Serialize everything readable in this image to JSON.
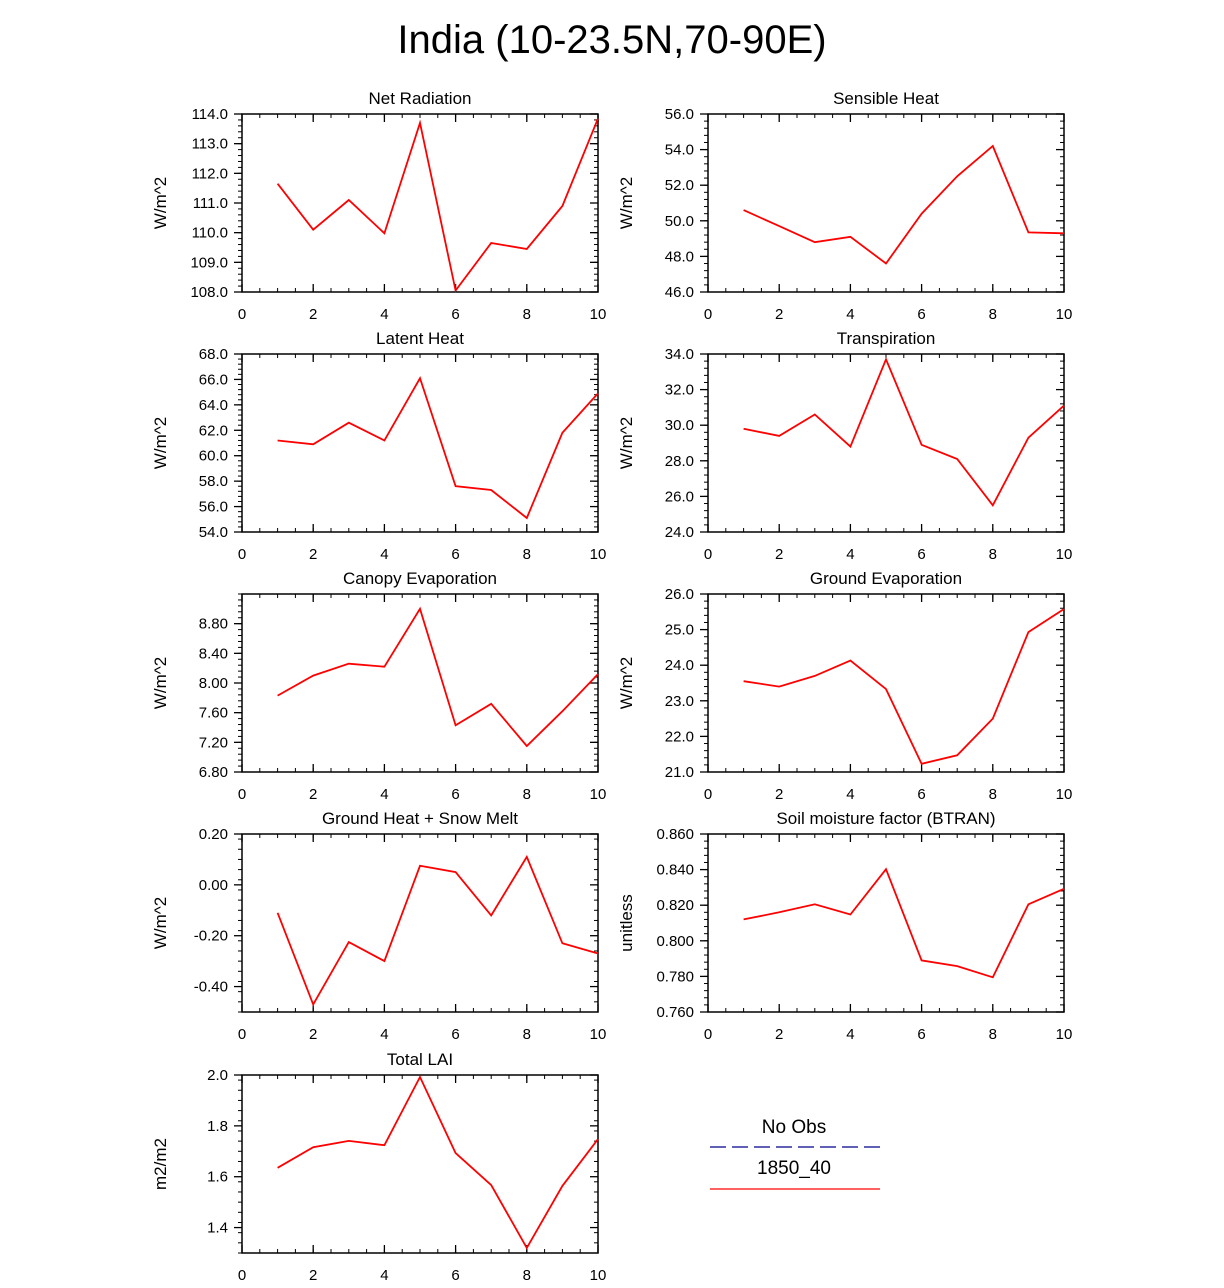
{
  "page_title": "India (10-23.5N,70-90E)",
  "colors": {
    "model_line": "#ff0000",
    "obs_line": "#00008b",
    "axis": "#000000"
  },
  "legend": {
    "obs_label": "No Obs",
    "model_label": "1850_40"
  },
  "chart_data": [
    {
      "type": "line",
      "title": "Net Radiation",
      "ylabel": "W/m^2",
      "xlim": [
        0,
        10
      ],
      "ylim": [
        108.0,
        114.0
      ],
      "x_ticks": [
        0,
        2,
        4,
        6,
        8,
        10
      ],
      "x_tick_labels": [
        "0",
        "2",
        "4",
        "6",
        "8",
        "10"
      ],
      "y_ticks": [
        108.0,
        109.0,
        110.0,
        111.0,
        112.0,
        113.0,
        114.0
      ],
      "y_tick_labels": [
        "108.0",
        "109.0",
        "110.0",
        "111.0",
        "112.0",
        "113.0",
        "114.0"
      ],
      "series": [
        {
          "name": "1850_40",
          "x": [
            1,
            2,
            3,
            4,
            5,
            6,
            7,
            8,
            9,
            10
          ],
          "values": [
            111.65,
            110.1,
            111.1,
            109.98,
            113.7,
            108.05,
            109.65,
            109.45,
            110.9,
            113.85
          ]
        }
      ]
    },
    {
      "type": "line",
      "title": "Sensible Heat",
      "ylabel": "W/m^2",
      "xlim": [
        0,
        10
      ],
      "ylim": [
        46.0,
        56.0
      ],
      "x_ticks": [
        0,
        2,
        4,
        6,
        8,
        10
      ],
      "x_tick_labels": [
        "0",
        "2",
        "4",
        "6",
        "8",
        "10"
      ],
      "y_ticks": [
        46.0,
        48.0,
        50.0,
        52.0,
        54.0,
        56.0
      ],
      "y_tick_labels": [
        "46.0",
        "48.0",
        "50.0",
        "52.0",
        "54.0",
        "56.0"
      ],
      "series": [
        {
          "name": "1850_40",
          "x": [
            1,
            2,
            3,
            4,
            5,
            6,
            7,
            8,
            9,
            10
          ],
          "values": [
            50.6,
            49.7,
            48.8,
            49.1,
            47.6,
            50.4,
            52.5,
            54.2,
            49.35,
            49.3
          ]
        }
      ]
    },
    {
      "type": "line",
      "title": "Latent Heat",
      "ylabel": "W/m^2",
      "xlim": [
        0,
        10
      ],
      "ylim": [
        54.0,
        68.0
      ],
      "x_ticks": [
        0,
        2,
        4,
        6,
        8,
        10
      ],
      "x_tick_labels": [
        "0",
        "2",
        "4",
        "6",
        "8",
        "10"
      ],
      "y_ticks": [
        54.0,
        56.0,
        58.0,
        60.0,
        62.0,
        64.0,
        66.0,
        68.0
      ],
      "y_tick_labels": [
        "54.0",
        "56.0",
        "58.0",
        "60.0",
        "62.0",
        "64.0",
        "66.0",
        "68.0"
      ],
      "series": [
        {
          "name": "1850_40",
          "x": [
            1,
            2,
            3,
            4,
            5,
            6,
            7,
            8,
            9,
            10
          ],
          "values": [
            61.2,
            60.9,
            62.6,
            61.2,
            66.1,
            57.6,
            57.3,
            55.1,
            61.8,
            64.9
          ]
        }
      ]
    },
    {
      "type": "line",
      "title": "Transpiration",
      "ylabel": "W/m^2",
      "xlim": [
        0,
        10
      ],
      "ylim": [
        24.0,
        34.0
      ],
      "x_ticks": [
        0,
        2,
        4,
        6,
        8,
        10
      ],
      "x_tick_labels": [
        "0",
        "2",
        "4",
        "6",
        "8",
        "10"
      ],
      "y_ticks": [
        24.0,
        26.0,
        28.0,
        30.0,
        32.0,
        34.0
      ],
      "y_tick_labels": [
        "24.0",
        "26.0",
        "28.0",
        "30.0",
        "32.0",
        "34.0"
      ],
      "series": [
        {
          "name": "1850_40",
          "x": [
            1,
            2,
            3,
            4,
            5,
            6,
            7,
            8,
            9,
            10
          ],
          "values": [
            29.8,
            29.4,
            30.6,
            28.8,
            33.7,
            28.9,
            28.1,
            25.5,
            29.3,
            31.1
          ]
        }
      ]
    },
    {
      "type": "line",
      "title": "Canopy Evaporation",
      "ylabel": "W/m^2",
      "xlim": [
        0,
        10
      ],
      "ylim": [
        6.8,
        9.2
      ],
      "x_ticks": [
        0,
        2,
        4,
        6,
        8,
        10
      ],
      "x_tick_labels": [
        "0",
        "2",
        "4",
        "6",
        "8",
        "10"
      ],
      "y_ticks": [
        6.8,
        7.2,
        7.6,
        8.0,
        8.4,
        8.8
      ],
      "y_tick_labels": [
        "6.80",
        "7.20",
        "7.60",
        "8.00",
        "8.40",
        "8.80"
      ],
      "series": [
        {
          "name": "1850_40",
          "x": [
            1,
            2,
            3,
            4,
            5,
            6,
            7,
            8,
            9,
            10
          ],
          "values": [
            7.83,
            8.1,
            8.26,
            8.22,
            9.0,
            7.43,
            7.72,
            7.15,
            7.62,
            8.12
          ]
        }
      ]
    },
    {
      "type": "line",
      "title": "Ground Evaporation",
      "ylabel": "W/m^2",
      "xlim": [
        0,
        10
      ],
      "ylim": [
        21.0,
        26.0
      ],
      "x_ticks": [
        0,
        2,
        4,
        6,
        8,
        10
      ],
      "x_tick_labels": [
        "0",
        "2",
        "4",
        "6",
        "8",
        "10"
      ],
      "y_ticks": [
        21.0,
        22.0,
        23.0,
        24.0,
        25.0,
        26.0
      ],
      "y_tick_labels": [
        "21.0",
        "22.0",
        "23.0",
        "24.0",
        "25.0",
        "26.0"
      ],
      "series": [
        {
          "name": "1850_40",
          "x": [
            1,
            2,
            3,
            4,
            5,
            6,
            7,
            8,
            9,
            10
          ],
          "values": [
            23.55,
            23.4,
            23.7,
            24.13,
            23.33,
            21.23,
            21.47,
            22.5,
            24.93,
            25.58
          ]
        }
      ]
    },
    {
      "type": "line",
      "title": "Ground Heat + Snow Melt",
      "ylabel": "W/m^2",
      "xlim": [
        0,
        10
      ],
      "ylim": [
        -0.5,
        0.2
      ],
      "x_ticks": [
        0,
        2,
        4,
        6,
        8,
        10
      ],
      "x_tick_labels": [
        "0",
        "2",
        "4",
        "6",
        "8",
        "10"
      ],
      "y_ticks": [
        -0.4,
        -0.2,
        0.0,
        0.2
      ],
      "y_tick_labels": [
        "-0.40",
        "-0.20",
        "0.00",
        "0.20"
      ],
      "series": [
        {
          "name": "1850_40",
          "x": [
            1,
            2,
            3,
            4,
            5,
            6,
            7,
            8,
            9,
            10
          ],
          "values": [
            -0.11,
            -0.47,
            -0.225,
            -0.3,
            0.075,
            0.05,
            -0.12,
            0.11,
            -0.23,
            -0.27
          ]
        }
      ]
    },
    {
      "type": "line",
      "title": "Soil moisture factor (BTRAN)",
      "ylabel": "unitless",
      "xlim": [
        0,
        10
      ],
      "ylim": [
        0.76,
        0.86
      ],
      "x_ticks": [
        0,
        2,
        4,
        6,
        8,
        10
      ],
      "x_tick_labels": [
        "0",
        "2",
        "4",
        "6",
        "8",
        "10"
      ],
      "y_ticks": [
        0.76,
        0.78,
        0.8,
        0.82,
        0.84,
        0.86
      ],
      "y_tick_labels": [
        "0.760",
        "0.780",
        "0.800",
        "0.820",
        "0.840",
        "0.860"
      ],
      "series": [
        {
          "name": "1850_40",
          "x": [
            1,
            2,
            3,
            4,
            5,
            6,
            7,
            8,
            9,
            10
          ],
          "values": [
            0.812,
            0.816,
            0.8205,
            0.8148,
            0.8402,
            0.789,
            0.7858,
            0.7795,
            0.8205,
            0.8292
          ]
        }
      ]
    },
    {
      "type": "line",
      "title": "Total LAI",
      "ylabel": "m2/m2",
      "xlim": [
        0,
        10
      ],
      "ylim": [
        1.3,
        2.0
      ],
      "x_ticks": [
        0,
        2,
        4,
        6,
        8,
        10
      ],
      "x_tick_labels": [
        "0",
        "2",
        "4",
        "6",
        "8",
        "10"
      ],
      "y_ticks": [
        1.4,
        1.6,
        1.8,
        2.0
      ],
      "y_tick_labels": [
        "1.4",
        "1.6",
        "1.8",
        "2.0"
      ],
      "series": [
        {
          "name": "1850_40",
          "x": [
            1,
            2,
            3,
            4,
            5,
            6,
            7,
            8,
            9,
            10
          ],
          "values": [
            1.635,
            1.716,
            1.741,
            1.724,
            1.992,
            1.693,
            1.567,
            1.32,
            1.564,
            1.748
          ]
        }
      ]
    }
  ]
}
